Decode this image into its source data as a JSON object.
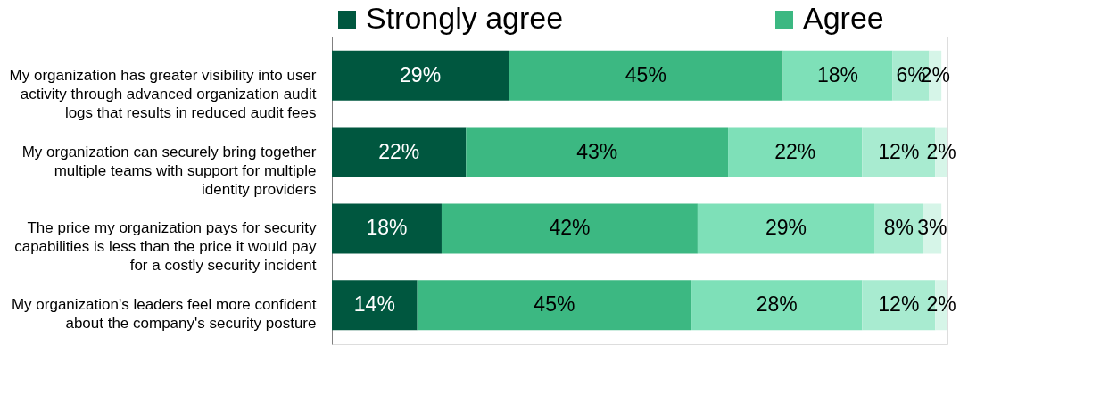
{
  "chart_data": {
    "type": "bar",
    "orientation": "horizontal",
    "stacked": true,
    "legend": "top",
    "categories": [
      "My organization has greater visibility into user activity through advanced organization audit logs that results in reduced audit fees",
      "My organization can securely bring together multiple teams with support for multiple identity providers",
      "The price my organization pays for security capabilities is less than the price it would pay for a costly security incident",
      "My organization's leaders feel more confident about the company's security posture"
    ],
    "series": [
      {
        "name": "Strongly agree",
        "color": "#00573f",
        "values": [
          29,
          22,
          18,
          14
        ],
        "value_labels": [
          "29%",
          "22%",
          "18%",
          "14%"
        ]
      },
      {
        "name": "Agree",
        "color": "#3cb882",
        "values": [
          45,
          43,
          42,
          45
        ],
        "value_labels": [
          "45%",
          "43%",
          "42%",
          "45%"
        ]
      },
      {
        "color": "#7ee0b8",
        "values": [
          18,
          22,
          29,
          28
        ],
        "value_labels": [
          "18%",
          "22%",
          "29%",
          "28%"
        ]
      },
      {
        "color": "#a8ebd0",
        "values": [
          6,
          12,
          8,
          12
        ],
        "value_labels": [
          "6%",
          "12%",
          "8%",
          "12%"
        ]
      },
      {
        "color": "#d6f5e8",
        "values": [
          2,
          2,
          3,
          2
        ],
        "value_labels": [
          "2%",
          "2%",
          "3%",
          "2%"
        ]
      }
    ]
  }
}
